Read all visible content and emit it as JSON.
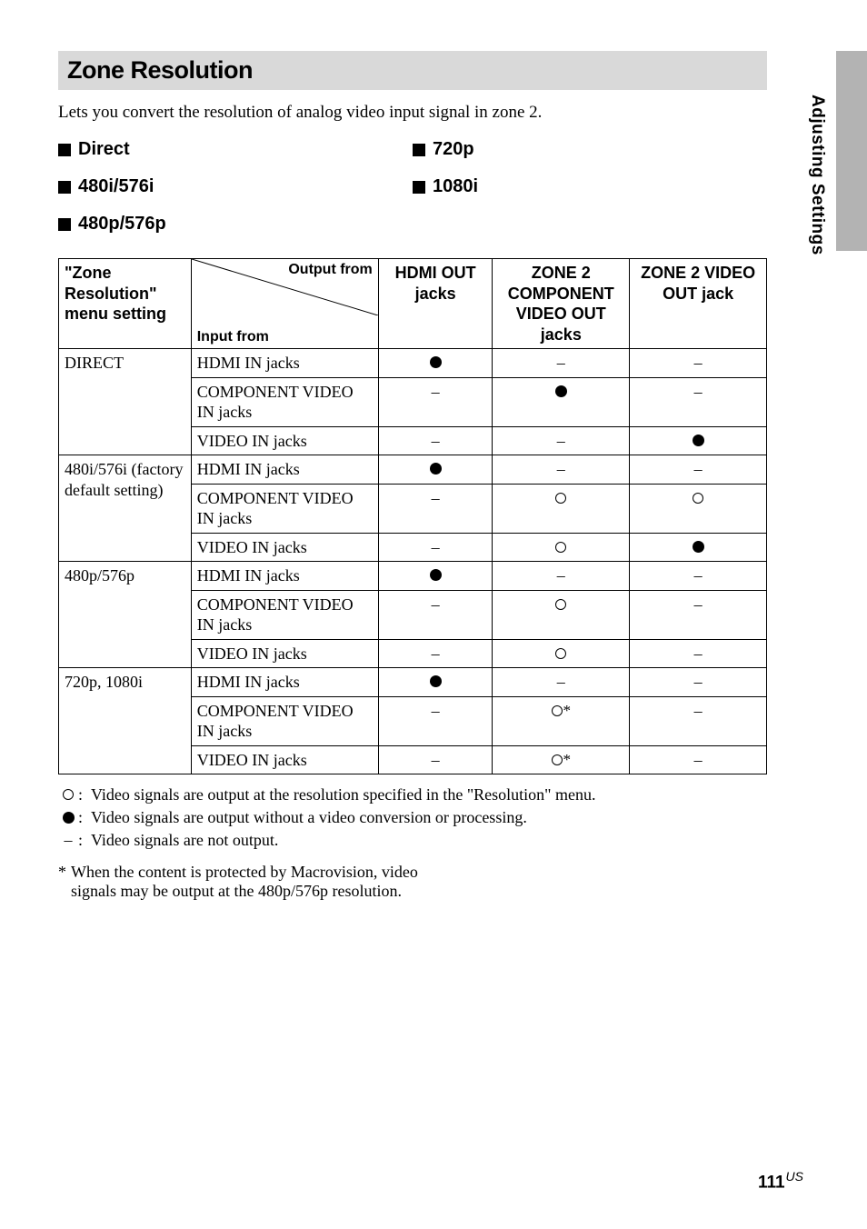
{
  "side_label": "Adjusting Settings",
  "title": "Zone Resolution",
  "intro": "Lets you convert the resolution of analog video input signal in zone 2.",
  "options_left": [
    "Direct",
    "480i/576i",
    "480p/576p"
  ],
  "options_right": [
    "720p",
    "1080i"
  ],
  "table": {
    "header_setting": "\"Zone Resolution\" menu setting",
    "header_output_from": "Output from",
    "header_input_from": "Input from",
    "header_cols": [
      "HDMI OUT jacks",
      "ZONE 2 COMPONENT VIDEO OUT jacks",
      "ZONE 2 VIDEO OUT jack"
    ],
    "groups": [
      {
        "setting": "DIRECT",
        "rows": [
          {
            "input": "HDMI IN jacks",
            "cells": [
              "dot",
              "dash",
              "dash"
            ]
          },
          {
            "input": "COMPONENT VIDEO IN jacks",
            "cells": [
              "dash",
              "dot",
              "dash"
            ]
          },
          {
            "input": "VIDEO IN jacks",
            "cells": [
              "dash",
              "dash",
              "dot"
            ]
          }
        ]
      },
      {
        "setting": "480i/576i (factory default setting)",
        "rows": [
          {
            "input": "HDMI IN jacks",
            "cells": [
              "dot",
              "dash",
              "dash"
            ]
          },
          {
            "input": "COMPONENT VIDEO IN jacks",
            "cells": [
              "dash",
              "ring",
              "ring"
            ]
          },
          {
            "input": "VIDEO IN jacks",
            "cells": [
              "dash",
              "ring",
              "dot"
            ]
          }
        ]
      },
      {
        "setting": "480p/576p",
        "rows": [
          {
            "input": "HDMI IN jacks",
            "cells": [
              "dot",
              "dash",
              "dash"
            ]
          },
          {
            "input": "COMPONENT VIDEO IN jacks",
            "cells": [
              "dash",
              "ring",
              "dash"
            ]
          },
          {
            "input": "VIDEO IN jacks",
            "cells": [
              "dash",
              "ring",
              "dash"
            ]
          }
        ]
      },
      {
        "setting": "720p, 1080i",
        "rows": [
          {
            "input": "HDMI IN jacks",
            "cells": [
              "dot",
              "dash",
              "dash"
            ]
          },
          {
            "input": "COMPONENT VIDEO IN jacks",
            "cells": [
              "dash",
              "ringstar",
              "dash"
            ]
          },
          {
            "input": "VIDEO IN jacks",
            "cells": [
              "dash",
              "ringstar",
              "dash"
            ]
          }
        ]
      }
    ]
  },
  "legend": [
    {
      "sym": "ring",
      "text": "Video signals are output at the resolution specified in the \"Resolution\" menu."
    },
    {
      "sym": "dot",
      "text": "Video signals are output without a video conversion or processing."
    },
    {
      "sym": "dash",
      "text": "Video signals are not output."
    }
  ],
  "footnote": "When the content is protected by Macrovision, video signals may be output at the 480p/576p resolution.",
  "page_number": "111",
  "page_region": "US"
}
